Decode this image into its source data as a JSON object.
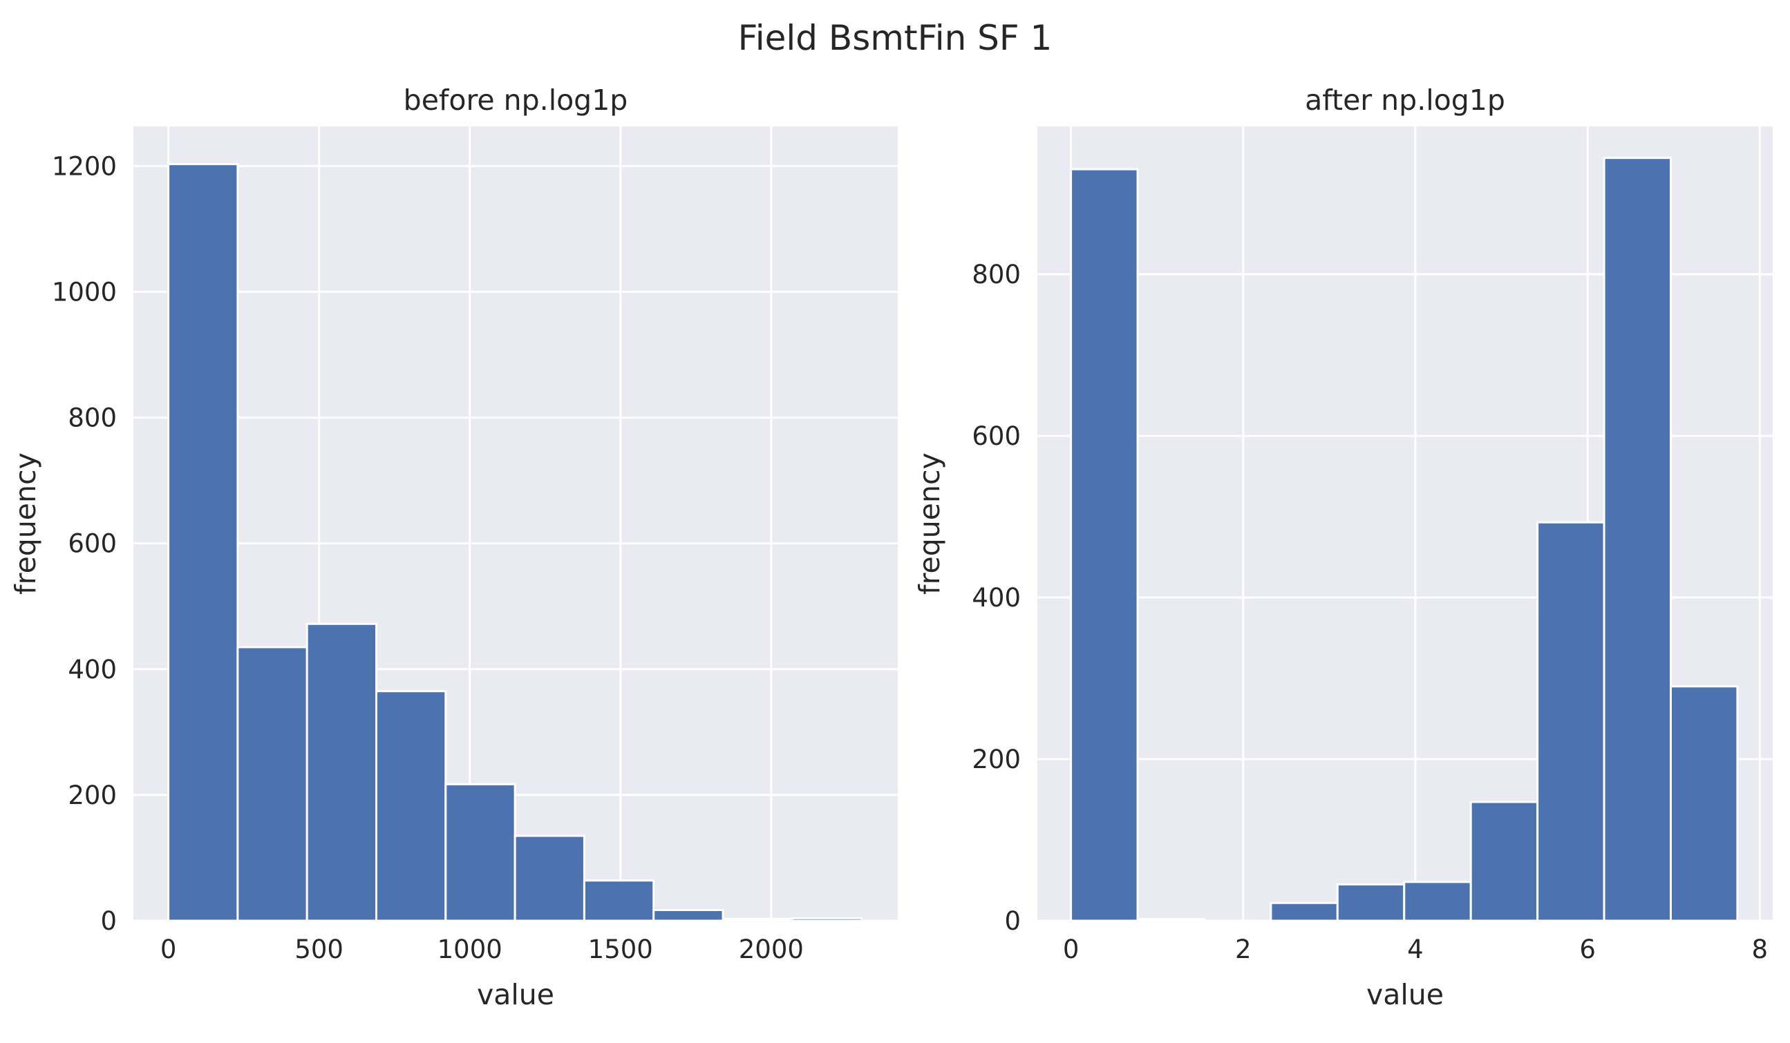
{
  "figure": {
    "suptitle": "Field BsmtFin SF 1"
  },
  "colors": {
    "bar": "#4c72b0",
    "axes_bg": "#eaeaf2",
    "grid": "#ffffff",
    "text": "#262626"
  },
  "chart_data": [
    {
      "type": "bar",
      "title": "before np.log1p",
      "xlabel": "value",
      "ylabel": "frequency",
      "xlim": [
        -116,
        2420
      ],
      "ylim": [
        0,
        1263
      ],
      "xticks": [
        0,
        500,
        1000,
        1500,
        2000
      ],
      "xtick_labels": [
        "0",
        "500",
        "1000",
        "1500",
        "2000"
      ],
      "yticks": [
        0,
        200,
        400,
        600,
        800,
        1000,
        1200
      ],
      "ytick_labels": [
        "0",
        "200",
        "400",
        "600",
        "800",
        "1000",
        "1200"
      ],
      "grid": true,
      "bin_edges": [
        0,
        230,
        460,
        690,
        920,
        1150,
        1380,
        1610,
        1840,
        2070,
        2300
      ],
      "values": [
        1203,
        435,
        472,
        365,
        217,
        135,
        64,
        17,
        3,
        4
      ]
    },
    {
      "type": "bar",
      "title": "after np.log1p",
      "xlabel": "value",
      "ylabel": "frequency",
      "xlim": [
        -0.39,
        8.15
      ],
      "ylim": [
        0,
        983
      ],
      "xticks": [
        0,
        2,
        4,
        6,
        8
      ],
      "xtick_labels": [
        "0",
        "2",
        "4",
        "6",
        "8"
      ],
      "yticks": [
        0,
        200,
        400,
        600,
        800
      ],
      "ytick_labels": [
        "0",
        "200",
        "400",
        "600",
        "800"
      ],
      "grid": true,
      "bin_edges": [
        0,
        0.774,
        1.548,
        2.322,
        3.096,
        3.87,
        4.644,
        5.418,
        6.192,
        6.966,
        7.74
      ],
      "values": [
        930,
        2,
        0,
        22,
        45,
        48,
        147,
        493,
        944,
        290
      ]
    }
  ]
}
